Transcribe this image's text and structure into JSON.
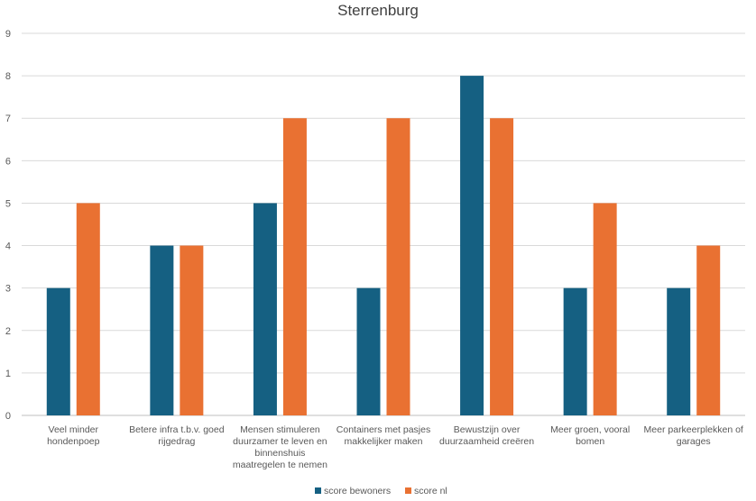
{
  "chart_data": {
    "type": "bar",
    "title": "Sterrenburg",
    "xlabel": "",
    "ylabel": "",
    "ylim": [
      0,
      9
    ],
    "yticks": [
      0,
      1,
      2,
      3,
      4,
      5,
      6,
      7,
      8,
      9
    ],
    "grid": true,
    "legend_position": "bottom",
    "categories": [
      [
        "Veel minder",
        "hondenpoep"
      ],
      [
        "Betere infra t.b.v. goed",
        "rijgedrag"
      ],
      [
        "Mensen stimuleren",
        "duurzamer te leven en",
        "binnenshuis",
        "maatregelen te nemen"
      ],
      [
        "Containers met pasjes",
        "makkelijker maken"
      ],
      [
        "Bewustzijn over",
        "duurzaamheid creëren"
      ],
      [
        "Meer groen, vooral",
        "bomen"
      ],
      [
        "Meer parkeerplekken of",
        "garages"
      ]
    ],
    "series": [
      {
        "name": "score bewoners",
        "color": "#156082",
        "values": [
          3,
          4,
          5,
          3,
          8,
          3,
          3
        ]
      },
      {
        "name": "score nl",
        "color": "#e97132",
        "values": [
          5,
          4,
          7,
          7,
          7,
          5,
          4
        ]
      }
    ]
  }
}
